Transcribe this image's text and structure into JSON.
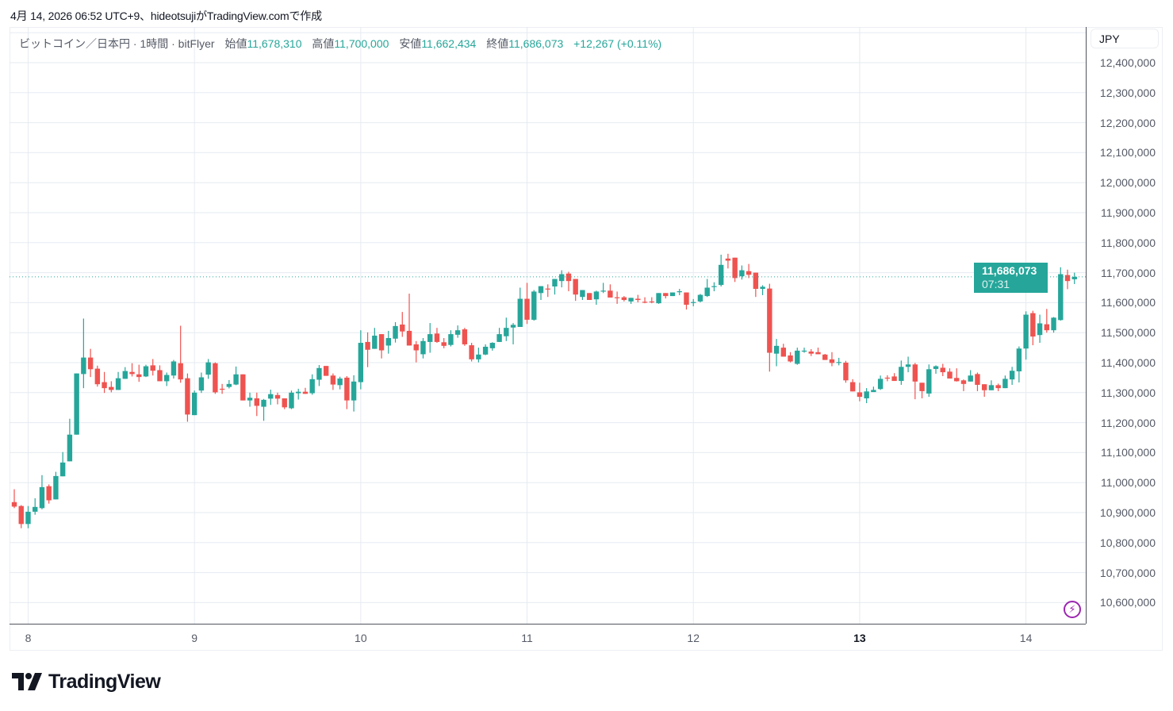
{
  "caption": "4月 14, 2026 06:52 UTC+9、hideotsujiがTradingView.comで作成",
  "legend": {
    "symbol": "ビットコイン／日本円 · 1時間 · bitFlyer",
    "open_label": "始値",
    "open": "11,678,310",
    "high_label": "高値",
    "high": "11,700,000",
    "low_label": "安値",
    "low": "11,662,434",
    "close_label": "終値",
    "close": "11,686,073",
    "change": "+12,267 (+0.11%)"
  },
  "currency": "JPY",
  "last_price": {
    "value": "11,686,073",
    "countdown": "07:31"
  },
  "logo_text": "TradingView",
  "colors": {
    "up": "#26a69a",
    "down": "#ef5350",
    "grid": "#e6ebf1",
    "accent": "#9c27b0"
  },
  "icons": {
    "snapshot": "lightning-icon",
    "logo": "tradingview-logo-icon"
  },
  "chart_data": {
    "type": "candlestick",
    "title": "ビットコイン／日本円 · 1時間 · bitFlyer",
    "price_unit": "thousand JPY",
    "ylim": [
      10500,
      12480
    ],
    "y_ticks": [
      10600,
      10700,
      10800,
      10900,
      11000,
      11100,
      11200,
      11300,
      11400,
      11500,
      11600,
      11700,
      11800,
      11900,
      12000,
      12100,
      12200,
      12300,
      12400
    ],
    "x_ticks": [
      {
        "label": "8",
        "index": 2
      },
      {
        "label": "9",
        "index": 26
      },
      {
        "label": "10",
        "index": 50
      },
      {
        "label": "11",
        "index": 74
      },
      {
        "label": "12",
        "index": 98
      },
      {
        "label": "13",
        "index": 122,
        "bold": true
      },
      {
        "label": "14",
        "index": 146
      }
    ],
    "last_close": 11686,
    "ohlc": [
      [
        10935,
        10978,
        10915,
        10920
      ],
      [
        10922,
        10925,
        10848,
        10862
      ],
      [
        10862,
        10922,
        10848,
        10903
      ],
      [
        10903,
        10948,
        10893,
        10919
      ],
      [
        10915,
        11025,
        10911,
        10985
      ],
      [
        10988,
        10994,
        10930,
        10941
      ],
      [
        10944,
        11036,
        10944,
        11022
      ],
      [
        11021,
        11102,
        11021,
        11067
      ],
      [
        11071,
        11213,
        11071,
        11160
      ],
      [
        11160,
        11364,
        11160,
        11364
      ],
      [
        11362,
        11547,
        11315,
        11417
      ],
      [
        11417,
        11446,
        11352,
        11378
      ],
      [
        11380,
        11390,
        11320,
        11328
      ],
      [
        11335,
        11369,
        11299,
        11315
      ],
      [
        11319,
        11338,
        11301,
        11309
      ],
      [
        11309,
        11369,
        11309,
        11348
      ],
      [
        11346,
        11385,
        11346,
        11372
      ],
      [
        11369,
        11398,
        11354,
        11362
      ],
      [
        11361,
        11393,
        11336,
        11352
      ],
      [
        11354,
        11393,
        11352,
        11388
      ],
      [
        11391,
        11412,
        11357,
        11373
      ],
      [
        11375,
        11391,
        11338,
        11338
      ],
      [
        11338,
        11367,
        11322,
        11359
      ],
      [
        11357,
        11409,
        11347,
        11404
      ],
      [
        11398,
        11523,
        11333,
        11344
      ],
      [
        11348,
        11364,
        11203,
        11227
      ],
      [
        11225,
        11307,
        11225,
        11300
      ],
      [
        11307,
        11367,
        11299,
        11351
      ],
      [
        11360,
        11412,
        11346,
        11401
      ],
      [
        11398,
        11401,
        11296,
        11301
      ],
      [
        11313,
        11329,
        11296,
        11311
      ],
      [
        11319,
        11342,
        11314,
        11329
      ],
      [
        11327,
        11387,
        11325,
        11361
      ],
      [
        11361,
        11361,
        11274,
        11274
      ],
      [
        11274,
        11300,
        11253,
        11283
      ],
      [
        11281,
        11300,
        11222,
        11256
      ],
      [
        11253,
        11279,
        11206,
        11276
      ],
      [
        11280,
        11310,
        11259,
        11295
      ],
      [
        11292,
        11300,
        11261,
        11280
      ],
      [
        11281,
        11281,
        11245,
        11251
      ],
      [
        11248,
        11307,
        11245,
        11300
      ],
      [
        11298,
        11313,
        11277,
        11303
      ],
      [
        11303,
        11316,
        11296,
        11296
      ],
      [
        11298,
        11361,
        11293,
        11345
      ],
      [
        11343,
        11392,
        11322,
        11382
      ],
      [
        11389,
        11389,
        11356,
        11356
      ],
      [
        11357,
        11364,
        11309,
        11327
      ],
      [
        11325,
        11353,
        11311,
        11347
      ],
      [
        11350,
        11355,
        11245,
        11274
      ],
      [
        11274,
        11358,
        11237,
        11337
      ],
      [
        11335,
        11508,
        11311,
        11466
      ],
      [
        11469,
        11501,
        11385,
        11443
      ],
      [
        11446,
        11516,
        11446,
        11490
      ],
      [
        11495,
        11495,
        11414,
        11441
      ],
      [
        11457,
        11506,
        11430,
        11482
      ],
      [
        11480,
        11535,
        11467,
        11522
      ],
      [
        11527,
        11569,
        11486,
        11504
      ],
      [
        11506,
        11630,
        11457,
        11457
      ],
      [
        11461,
        11472,
        11401,
        11441
      ],
      [
        11428,
        11482,
        11414,
        11472
      ],
      [
        11469,
        11532,
        11433,
        11495
      ],
      [
        11497,
        11516,
        11466,
        11469
      ],
      [
        11468,
        11482,
        11448,
        11456
      ],
      [
        11459,
        11508,
        11454,
        11495
      ],
      [
        11493,
        11524,
        11483,
        11508
      ],
      [
        11511,
        11516,
        11456,
        11461
      ],
      [
        11458,
        11466,
        11404,
        11411
      ],
      [
        11411,
        11450,
        11401,
        11427
      ],
      [
        11427,
        11461,
        11425,
        11453
      ],
      [
        11448,
        11468,
        11440,
        11466
      ],
      [
        11469,
        11516,
        11469,
        11495
      ],
      [
        11488,
        11550,
        11472,
        11516
      ],
      [
        11517,
        11532,
        11461,
        11526
      ],
      [
        11519,
        11650,
        11519,
        11613
      ],
      [
        11613,
        11666,
        11529,
        11543
      ],
      [
        11543,
        11642,
        11540,
        11637
      ],
      [
        11632,
        11655,
        11609,
        11655
      ],
      [
        11647,
        11661,
        11619,
        11646
      ],
      [
        11654,
        11679,
        11627,
        11679
      ],
      [
        11672,
        11708,
        11651,
        11695
      ],
      [
        11697,
        11703,
        11638,
        11672
      ],
      [
        11679,
        11679,
        11606,
        11627
      ],
      [
        11619,
        11642,
        11609,
        11642
      ],
      [
        11632,
        11632,
        11609,
        11609
      ],
      [
        11611,
        11640,
        11593,
        11637
      ],
      [
        11637,
        11666,
        11632,
        11640
      ],
      [
        11640,
        11661,
        11617,
        11617
      ],
      [
        11618,
        11637,
        11596,
        11617
      ],
      [
        11618,
        11622,
        11604,
        11609
      ],
      [
        11604,
        11616,
        11596,
        11616
      ],
      [
        11613,
        11626,
        11601,
        11609
      ],
      [
        11603,
        11618,
        11598,
        11601
      ],
      [
        11604,
        11618,
        11598,
        11602
      ],
      [
        11598,
        11632,
        11596,
        11632
      ],
      [
        11632,
        11632,
        11614,
        11622
      ],
      [
        11622,
        11634,
        11622,
        11634
      ],
      [
        11636,
        11646,
        11625,
        11638
      ],
      [
        11634,
        11634,
        11577,
        11593
      ],
      [
        11600,
        11612,
        11588,
        11602
      ],
      [
        11604,
        11629,
        11601,
        11626
      ],
      [
        11622,
        11679,
        11619,
        11650
      ],
      [
        11654,
        11668,
        11638,
        11655
      ],
      [
        11659,
        11760,
        11654,
        11726
      ],
      [
        11747,
        11763,
        11714,
        11740
      ],
      [
        11750,
        11750,
        11669,
        11682
      ],
      [
        11688,
        11724,
        11677,
        11708
      ],
      [
        11705,
        11729,
        11682,
        11693
      ],
      [
        11700,
        11700,
        11619,
        11646
      ],
      [
        11646,
        11658,
        11625,
        11653
      ],
      [
        11647,
        11663,
        11370,
        11433
      ],
      [
        11430,
        11479,
        11388,
        11456
      ],
      [
        11450,
        11463,
        11420,
        11420
      ],
      [
        11424,
        11435,
        11401,
        11404
      ],
      [
        11396,
        11450,
        11393,
        11440
      ],
      [
        11438,
        11450,
        11433,
        11440
      ],
      [
        11437,
        11445,
        11422,
        11430
      ],
      [
        11435,
        11450,
        11428,
        11428
      ],
      [
        11427,
        11429,
        11409,
        11409
      ],
      [
        11411,
        11435,
        11388,
        11399
      ],
      [
        11400,
        11416,
        11391,
        11402
      ],
      [
        11400,
        11406,
        11333,
        11341
      ],
      [
        11335,
        11345,
        11304,
        11304
      ],
      [
        11301,
        11333,
        11271,
        11286
      ],
      [
        11281,
        11315,
        11265,
        11304
      ],
      [
        11302,
        11320,
        11302,
        11309
      ],
      [
        11312,
        11357,
        11309,
        11346
      ],
      [
        11350,
        11358,
        11338,
        11349
      ],
      [
        11354,
        11365,
        11339,
        11339
      ],
      [
        11339,
        11407,
        11326,
        11386
      ],
      [
        11386,
        11420,
        11368,
        11394
      ],
      [
        11394,
        11399,
        11278,
        11337
      ],
      [
        11333,
        11333,
        11281,
        11305
      ],
      [
        11297,
        11394,
        11286,
        11378
      ],
      [
        11379,
        11391,
        11363,
        11388
      ],
      [
        11383,
        11396,
        11355,
        11368
      ],
      [
        11370,
        11381,
        11347,
        11347
      ],
      [
        11349,
        11381,
        11337,
        11338
      ],
      [
        11341,
        11344,
        11305,
        11329
      ],
      [
        11337,
        11375,
        11337,
        11357
      ],
      [
        11362,
        11367,
        11305,
        11326
      ],
      [
        11328,
        11328,
        11286,
        11308
      ],
      [
        11308,
        11341,
        11308,
        11325
      ],
      [
        11325,
        11330,
        11305,
        11315
      ],
      [
        11315,
        11357,
        11315,
        11346
      ],
      [
        11344,
        11386,
        11326,
        11373
      ],
      [
        11371,
        11454,
        11334,
        11447
      ],
      [
        11447,
        11571,
        11410,
        11560
      ],
      [
        11565,
        11573,
        11458,
        11487
      ],
      [
        11492,
        11560,
        11466,
        11531
      ],
      [
        11528,
        11579,
        11500,
        11508
      ],
      [
        11508,
        11552,
        11500,
        11550
      ],
      [
        11542,
        11718,
        11540,
        11695
      ],
      [
        11692,
        11710,
        11645,
        11672
      ],
      [
        11678,
        11700,
        11662,
        11686
      ]
    ]
  }
}
